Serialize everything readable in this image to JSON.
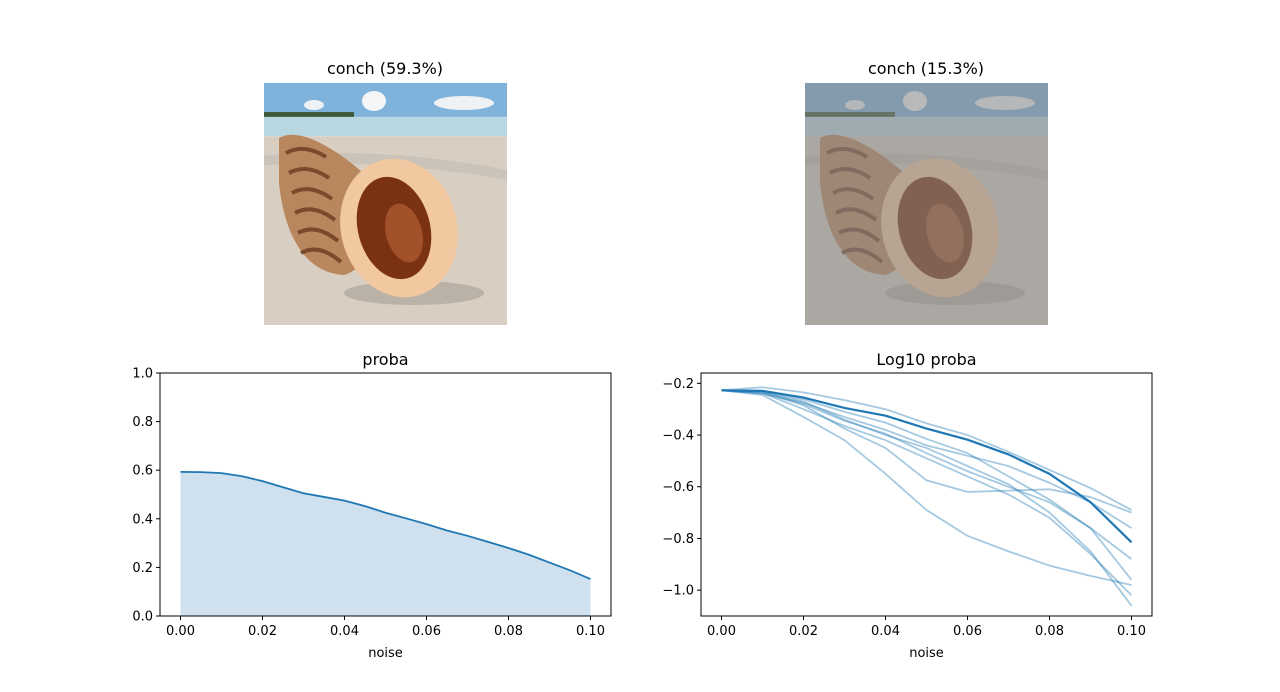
{
  "images": [
    {
      "title": "conch (59.3%)",
      "content": "Photo of a conch shell on a sandy beach with sea and clouds in the background",
      "noisy": false,
      "colors": {
        "sky": "#7fb3dc",
        "sea": "#b9d7e3",
        "sand": "#d8cfc2",
        "shell_outer": "#b9875e",
        "shell_inner": "#7a3212",
        "lip": "#f2c8a0"
      }
    },
    {
      "title": "conch (15.3%)",
      "content": "The same conch photo with heavy additive random noise",
      "noisy": true,
      "colors": {
        "sky": "#7fb3dc",
        "sea": "#b9d7e3",
        "sand": "#d8cfc2",
        "shell_outer": "#b9875e",
        "shell_inner": "#7a3212",
        "lip": "#f2c8a0"
      }
    }
  ],
  "chart_data": [
    {
      "type": "area",
      "title": "proba",
      "xlabel": "noise",
      "ylabel": "",
      "xlim": [
        -0.005,
        0.105
      ],
      "ylim": [
        0.0,
        1.0
      ],
      "xticks": [
        "0.00",
        "0.02",
        "0.04",
        "0.06",
        "0.08",
        "0.10"
      ],
      "yticks": [
        "0.0",
        "0.2",
        "0.4",
        "0.6",
        "0.8",
        "1.0"
      ],
      "color": "#1f77b4",
      "fill_color": "#cfe1ee",
      "x": [
        0.0,
        0.005,
        0.01,
        0.015,
        0.02,
        0.025,
        0.03,
        0.035,
        0.04,
        0.045,
        0.05,
        0.055,
        0.06,
        0.065,
        0.07,
        0.075,
        0.08,
        0.085,
        0.09,
        0.095,
        0.1
      ],
      "values": [
        0.593,
        0.592,
        0.588,
        0.575,
        0.555,
        0.53,
        0.505,
        0.49,
        0.475,
        0.452,
        0.425,
        0.402,
        0.378,
        0.352,
        0.33,
        0.305,
        0.28,
        0.252,
        0.22,
        0.188,
        0.152
      ],
      "grid": false
    },
    {
      "type": "line",
      "title": "Log10 proba",
      "xlabel": "noise",
      "ylabel": "",
      "xlim": [
        -0.005,
        0.105
      ],
      "ylim": [
        -1.1,
        -0.16
      ],
      "xticks": [
        "0.00",
        "0.02",
        "0.04",
        "0.06",
        "0.08",
        "0.10"
      ],
      "yticks": [
        "−1.0",
        "−0.8",
        "−0.6",
        "−0.4",
        "−0.2"
      ],
      "color": "#1f77b4",
      "x": [
        0.0,
        0.01,
        0.02,
        0.03,
        0.04,
        0.05,
        0.06,
        0.07,
        0.08,
        0.09,
        0.1
      ],
      "mean": [
        -0.227,
        -0.229,
        -0.255,
        -0.295,
        -0.325,
        -0.375,
        -0.418,
        -0.475,
        -0.55,
        -0.66,
        -0.815
      ],
      "series": [
        {
          "values": [
            -0.227,
            -0.215,
            -0.235,
            -0.265,
            -0.3,
            -0.355,
            -0.4,
            -0.465,
            -0.535,
            -0.605,
            -0.69
          ]
        },
        {
          "values": [
            -0.227,
            -0.235,
            -0.285,
            -0.375,
            -0.45,
            -0.575,
            -0.62,
            -0.615,
            -0.61,
            -0.64,
            -0.7
          ]
        },
        {
          "values": [
            -0.227,
            -0.245,
            -0.33,
            -0.42,
            -0.55,
            -0.69,
            -0.79,
            -0.85,
            -0.905,
            -0.945,
            -0.98
          ]
        },
        {
          "values": [
            -0.227,
            -0.23,
            -0.27,
            -0.34,
            -0.4,
            -0.45,
            -0.52,
            -0.59,
            -0.7,
            -0.85,
            -1.06
          ]
        },
        {
          "values": [
            -0.227,
            -0.24,
            -0.275,
            -0.33,
            -0.38,
            -0.44,
            -0.48,
            -0.52,
            -0.585,
            -0.66,
            -0.76
          ]
        },
        {
          "values": [
            -0.227,
            -0.238,
            -0.3,
            -0.365,
            -0.42,
            -0.49,
            -0.56,
            -0.63,
            -0.72,
            -0.86,
            -1.02
          ]
        },
        {
          "values": [
            -0.227,
            -0.232,
            -0.28,
            -0.345,
            -0.395,
            -0.47,
            -0.54,
            -0.6,
            -0.66,
            -0.76,
            -0.96
          ]
        },
        {
          "values": [
            -0.227,
            -0.23,
            -0.262,
            -0.31,
            -0.352,
            -0.415,
            -0.47,
            -0.56,
            -0.65,
            -0.76,
            -0.88
          ]
        }
      ],
      "grid": false
    }
  ]
}
